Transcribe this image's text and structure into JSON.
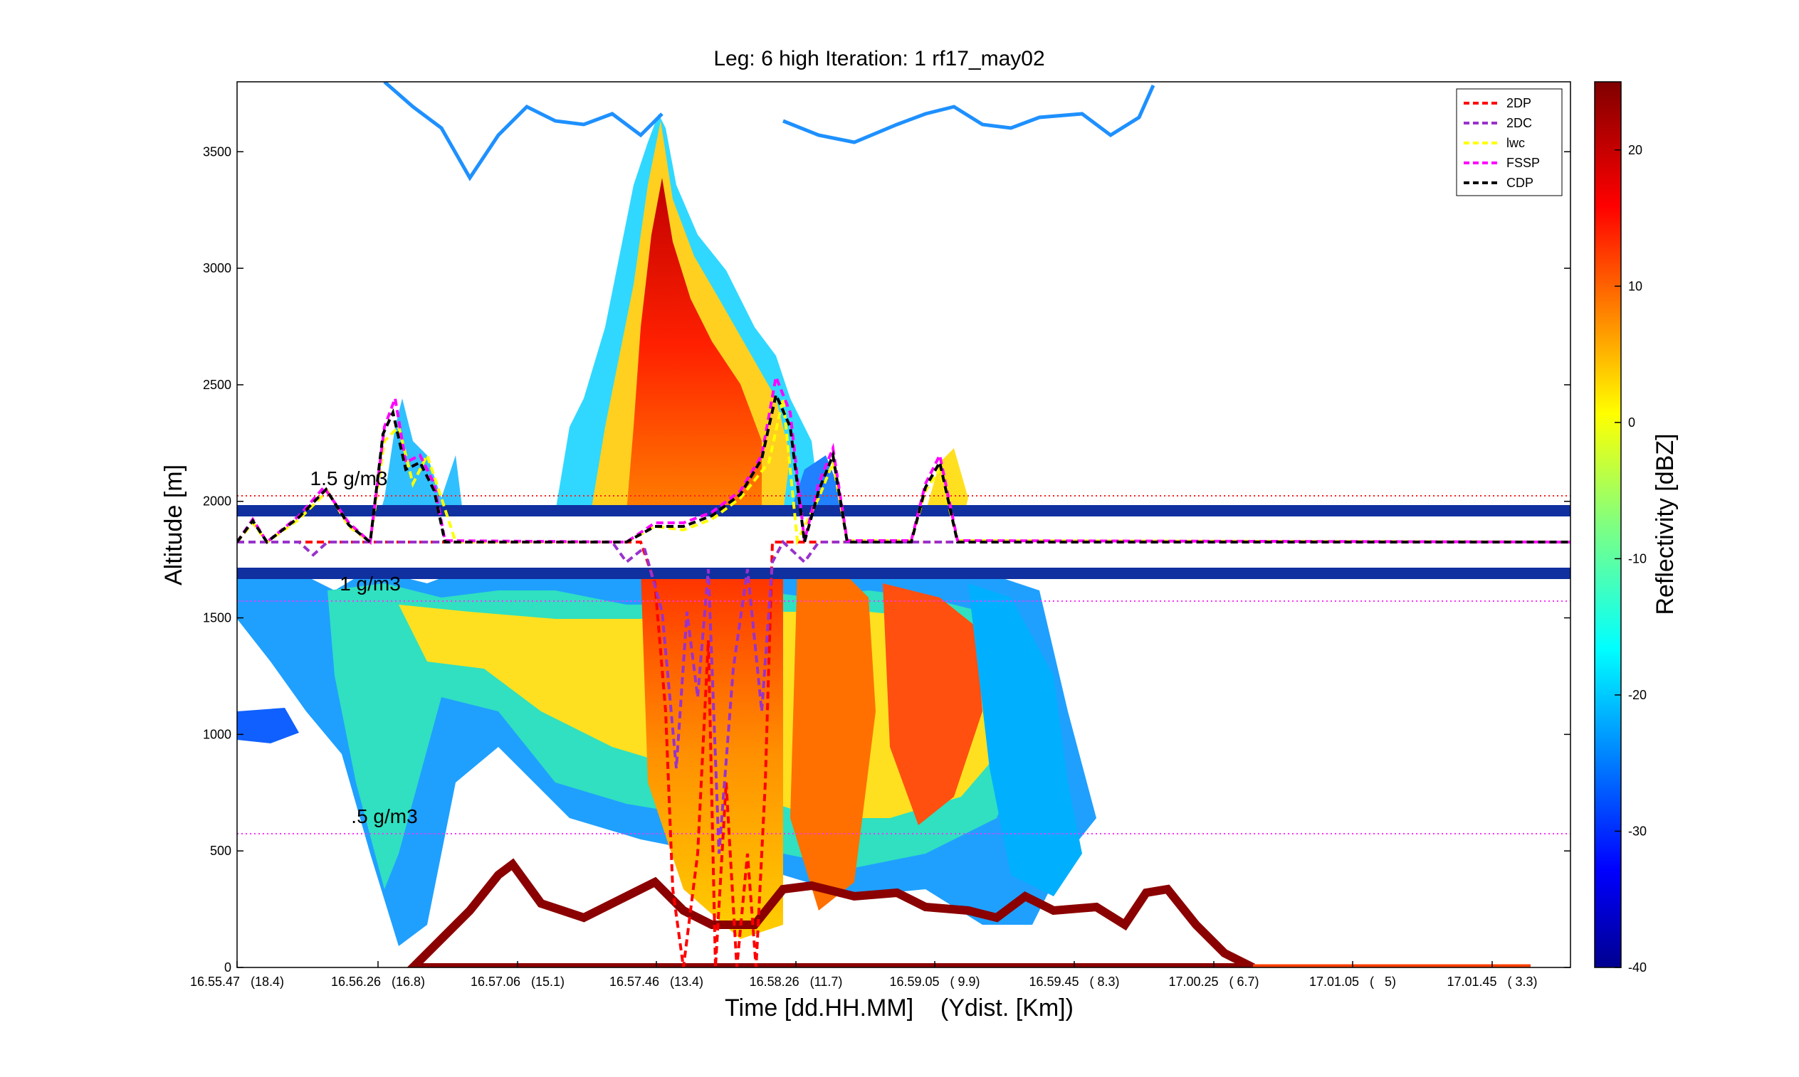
{
  "chart_data": {
    "type": "heatmap",
    "title": "Leg: 6 high Iteration: 1  rf17_may02",
    "xlabel": "Time [dd.HH.MM]    (Ydist. [Km])",
    "ylabel": "Altitude [m]",
    "ylim": [
      0,
      3800
    ],
    "yticks": [
      0,
      500,
      1000,
      1500,
      2000,
      2500,
      3000,
      3500
    ],
    "xticks": [
      "16.55.47   (18.4)",
      "16.56.26   (16.8)",
      "16.57.06   (15.1)",
      "16.57.46   (13.4)",
      "16.58.26   (11.7)",
      "16.59.05   ( 9.9)",
      "16.59.45   ( 8.3)",
      "17.00.25   ( 6.7)",
      "17.01.05   (   5)",
      "17.01.45   ( 3.3)"
    ],
    "colorbar": {
      "label": "Reflectivity [dBZ]",
      "range": [
        -40,
        25
      ],
      "ticks": [
        20,
        10,
        0,
        -10,
        -20,
        -30,
        -40
      ]
    },
    "reference_lines": [
      {
        "label": "1.5 g/m3",
        "altitude": 2020,
        "color": "#ff2020"
      },
      {
        "label": "1 g/m3",
        "altitude": 1570,
        "color": "#ff30ff"
      },
      {
        "label": ".5 g/m3",
        "altitude": 570,
        "color": "#ff30ff"
      }
    ],
    "series": [
      {
        "name": "2DP",
        "color": "#ff0000",
        "style": "dashed"
      },
      {
        "name": "2DC",
        "color": "#9932cc",
        "style": "dashed"
      },
      {
        "name": "lwc",
        "color": "#ffff00",
        "style": "dashed"
      },
      {
        "name": "FSSP",
        "color": "#ff00ff",
        "style": "dashed"
      },
      {
        "name": "CDP",
        "color": "#000000",
        "style": "dashed"
      }
    ],
    "legend_position": "top-right",
    "grid": false
  }
}
